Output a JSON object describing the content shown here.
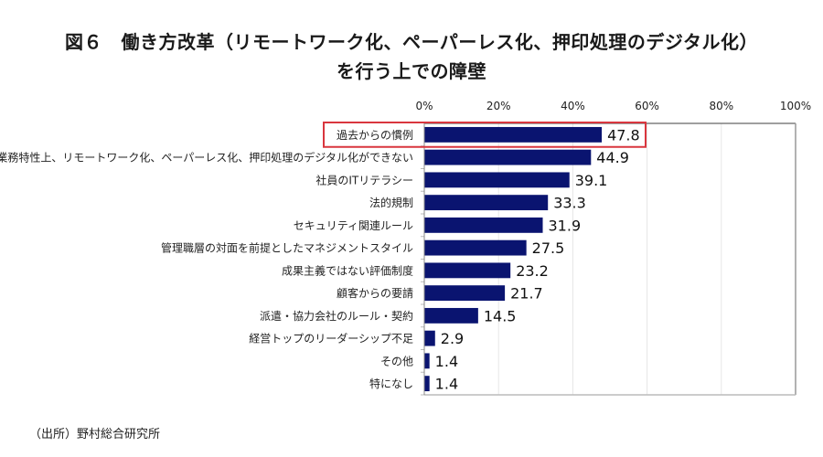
{
  "header": {
    "title_line1": "図６　働き方改革（リモートワーク化、ペーパーレス化、押印処理のデジタル化）",
    "title_line2": "を行う上での障壁"
  },
  "footer": {
    "source": "（出所）野村総合研究所"
  },
  "colors": {
    "bar": "#0a1470",
    "highlight_box": "#d9363e",
    "grid": "#e6e6e6",
    "axis": "#8c8c8c"
  },
  "chart_data": {
    "type": "bar",
    "orientation": "horizontal",
    "title": "図６　働き方改革（リモートワーク化、ペーパーレス化、押印処理のデジタル化）を行う上での障壁",
    "xlabel": "",
    "ylabel": "",
    "xlim": [
      0,
      100
    ],
    "x_ticks": [
      0,
      20,
      40,
      60,
      80,
      100
    ],
    "x_tick_labels": [
      "0%",
      "20%",
      "40%",
      "60%",
      "80%",
      "100%"
    ],
    "grid": true,
    "categories": [
      "過去からの慣例",
      "業務特性上、リモートワーク化、ペーパーレス化、押印処理のデジタル化ができない",
      "社員のITリテラシー",
      "法的規制",
      "セキュリティ関連ルール",
      "管理職層の対面を前提としたマネジメントスタイル",
      "成果主義ではない評価制度",
      "顧客からの要請",
      "派遣・協力会社のルール・契約",
      "経営トップのリーダーシップ不足",
      "その他",
      "特になし"
    ],
    "values": [
      47.8,
      44.9,
      39.1,
      33.3,
      31.9,
      27.5,
      23.2,
      21.7,
      14.5,
      2.9,
      1.4,
      1.4
    ],
    "value_labels": [
      "47.8",
      "44.9",
      "39.1",
      "33.3",
      "31.9",
      "27.5",
      "23.2",
      "21.7",
      "14.5",
      "2.9",
      "1.4",
      "1.4"
    ],
    "highlighted_index": 0
  }
}
